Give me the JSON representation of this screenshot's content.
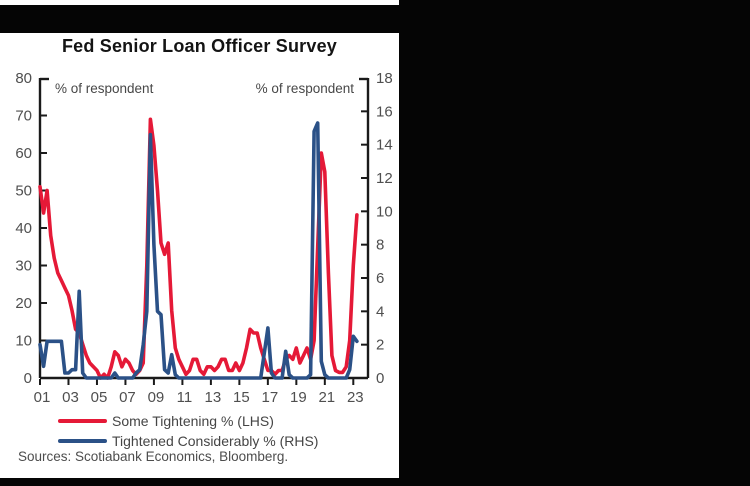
{
  "page": {
    "source_note": "Sources: Scotiabank Economics, Bloomberg."
  },
  "chart_data": {
    "type": "line",
    "title": "Fed Senior Loan Officer Survey",
    "frequency": "quarterly",
    "x_start": "2001Q1",
    "x_end": "2023Q2",
    "grid": false,
    "legend_position": "bottom",
    "left_axis": {
      "label": "% of respondent",
      "min": 0,
      "max": 80,
      "ticks": [
        0,
        10,
        20,
        30,
        40,
        50,
        60,
        70,
        80
      ]
    },
    "right_axis": {
      "label": "% of respondent",
      "min": 0,
      "max": 18,
      "ticks": [
        0,
        2,
        4,
        6,
        8,
        10,
        12,
        14,
        16,
        18
      ]
    },
    "x_axis": {
      "tick_labels": [
        "01",
        "03",
        "05",
        "07",
        "09",
        "11",
        "13",
        "15",
        "17",
        "19",
        "21",
        "23"
      ],
      "tick_years": [
        2001,
        2003,
        2005,
        2007,
        2009,
        2011,
        2013,
        2015,
        2017,
        2019,
        2021,
        2023
      ]
    },
    "series": [
      {
        "name": "Some Tightening % (LHS)",
        "axis": "left",
        "color": "#e51937",
        "values": [
          51,
          44,
          50,
          38,
          32,
          28,
          26,
          24,
          22,
          18,
          13,
          12,
          9,
          6,
          4,
          3,
          2,
          0,
          1,
          0,
          3,
          7,
          6,
          3,
          5,
          4,
          2,
          1,
          2,
          4,
          30,
          69,
          62,
          50,
          36,
          33,
          36,
          18,
          8,
          5,
          3,
          1,
          2,
          5,
          5,
          2,
          1,
          3,
          3,
          2,
          3,
          5,
          5,
          2,
          2,
          4,
          2,
          4,
          8,
          13,
          12,
          12,
          8,
          5,
          2,
          2,
          1,
          2,
          2,
          5,
          6,
          5,
          8,
          4,
          6,
          8,
          5,
          10,
          35,
          60,
          55,
          28,
          6,
          2,
          1.5,
          1.5,
          3,
          10,
          30,
          43.5
        ]
      },
      {
        "name": "Tightened Considerably % (RHS)",
        "axis": "right",
        "color": "#2b5187",
        "values": [
          2,
          0.7,
          2.2,
          2.2,
          2.2,
          2.2,
          2.2,
          0.3,
          0.3,
          0.5,
          0.5,
          5.2,
          0.3,
          0,
          0,
          0,
          0,
          0,
          0,
          0,
          0,
          0.3,
          0,
          0,
          0,
          0,
          0,
          0.3,
          0.5,
          2,
          4,
          14.6,
          8,
          4,
          3.8,
          0.5,
          0.3,
          1.4,
          0.2,
          0,
          0,
          0,
          0,
          0,
          0,
          0,
          0,
          0,
          0,
          0,
          0,
          0,
          0,
          0,
          0,
          0,
          0,
          0,
          0,
          0,
          0,
          0,
          0,
          1.5,
          3,
          0.3,
          0,
          0,
          0,
          1.6,
          0.2,
          0,
          0,
          0,
          0,
          0,
          0.2,
          14.8,
          15.3,
          1,
          0.2,
          0,
          0,
          0,
          0,
          0,
          0,
          0.5,
          2.5,
          2.2
        ]
      }
    ]
  }
}
